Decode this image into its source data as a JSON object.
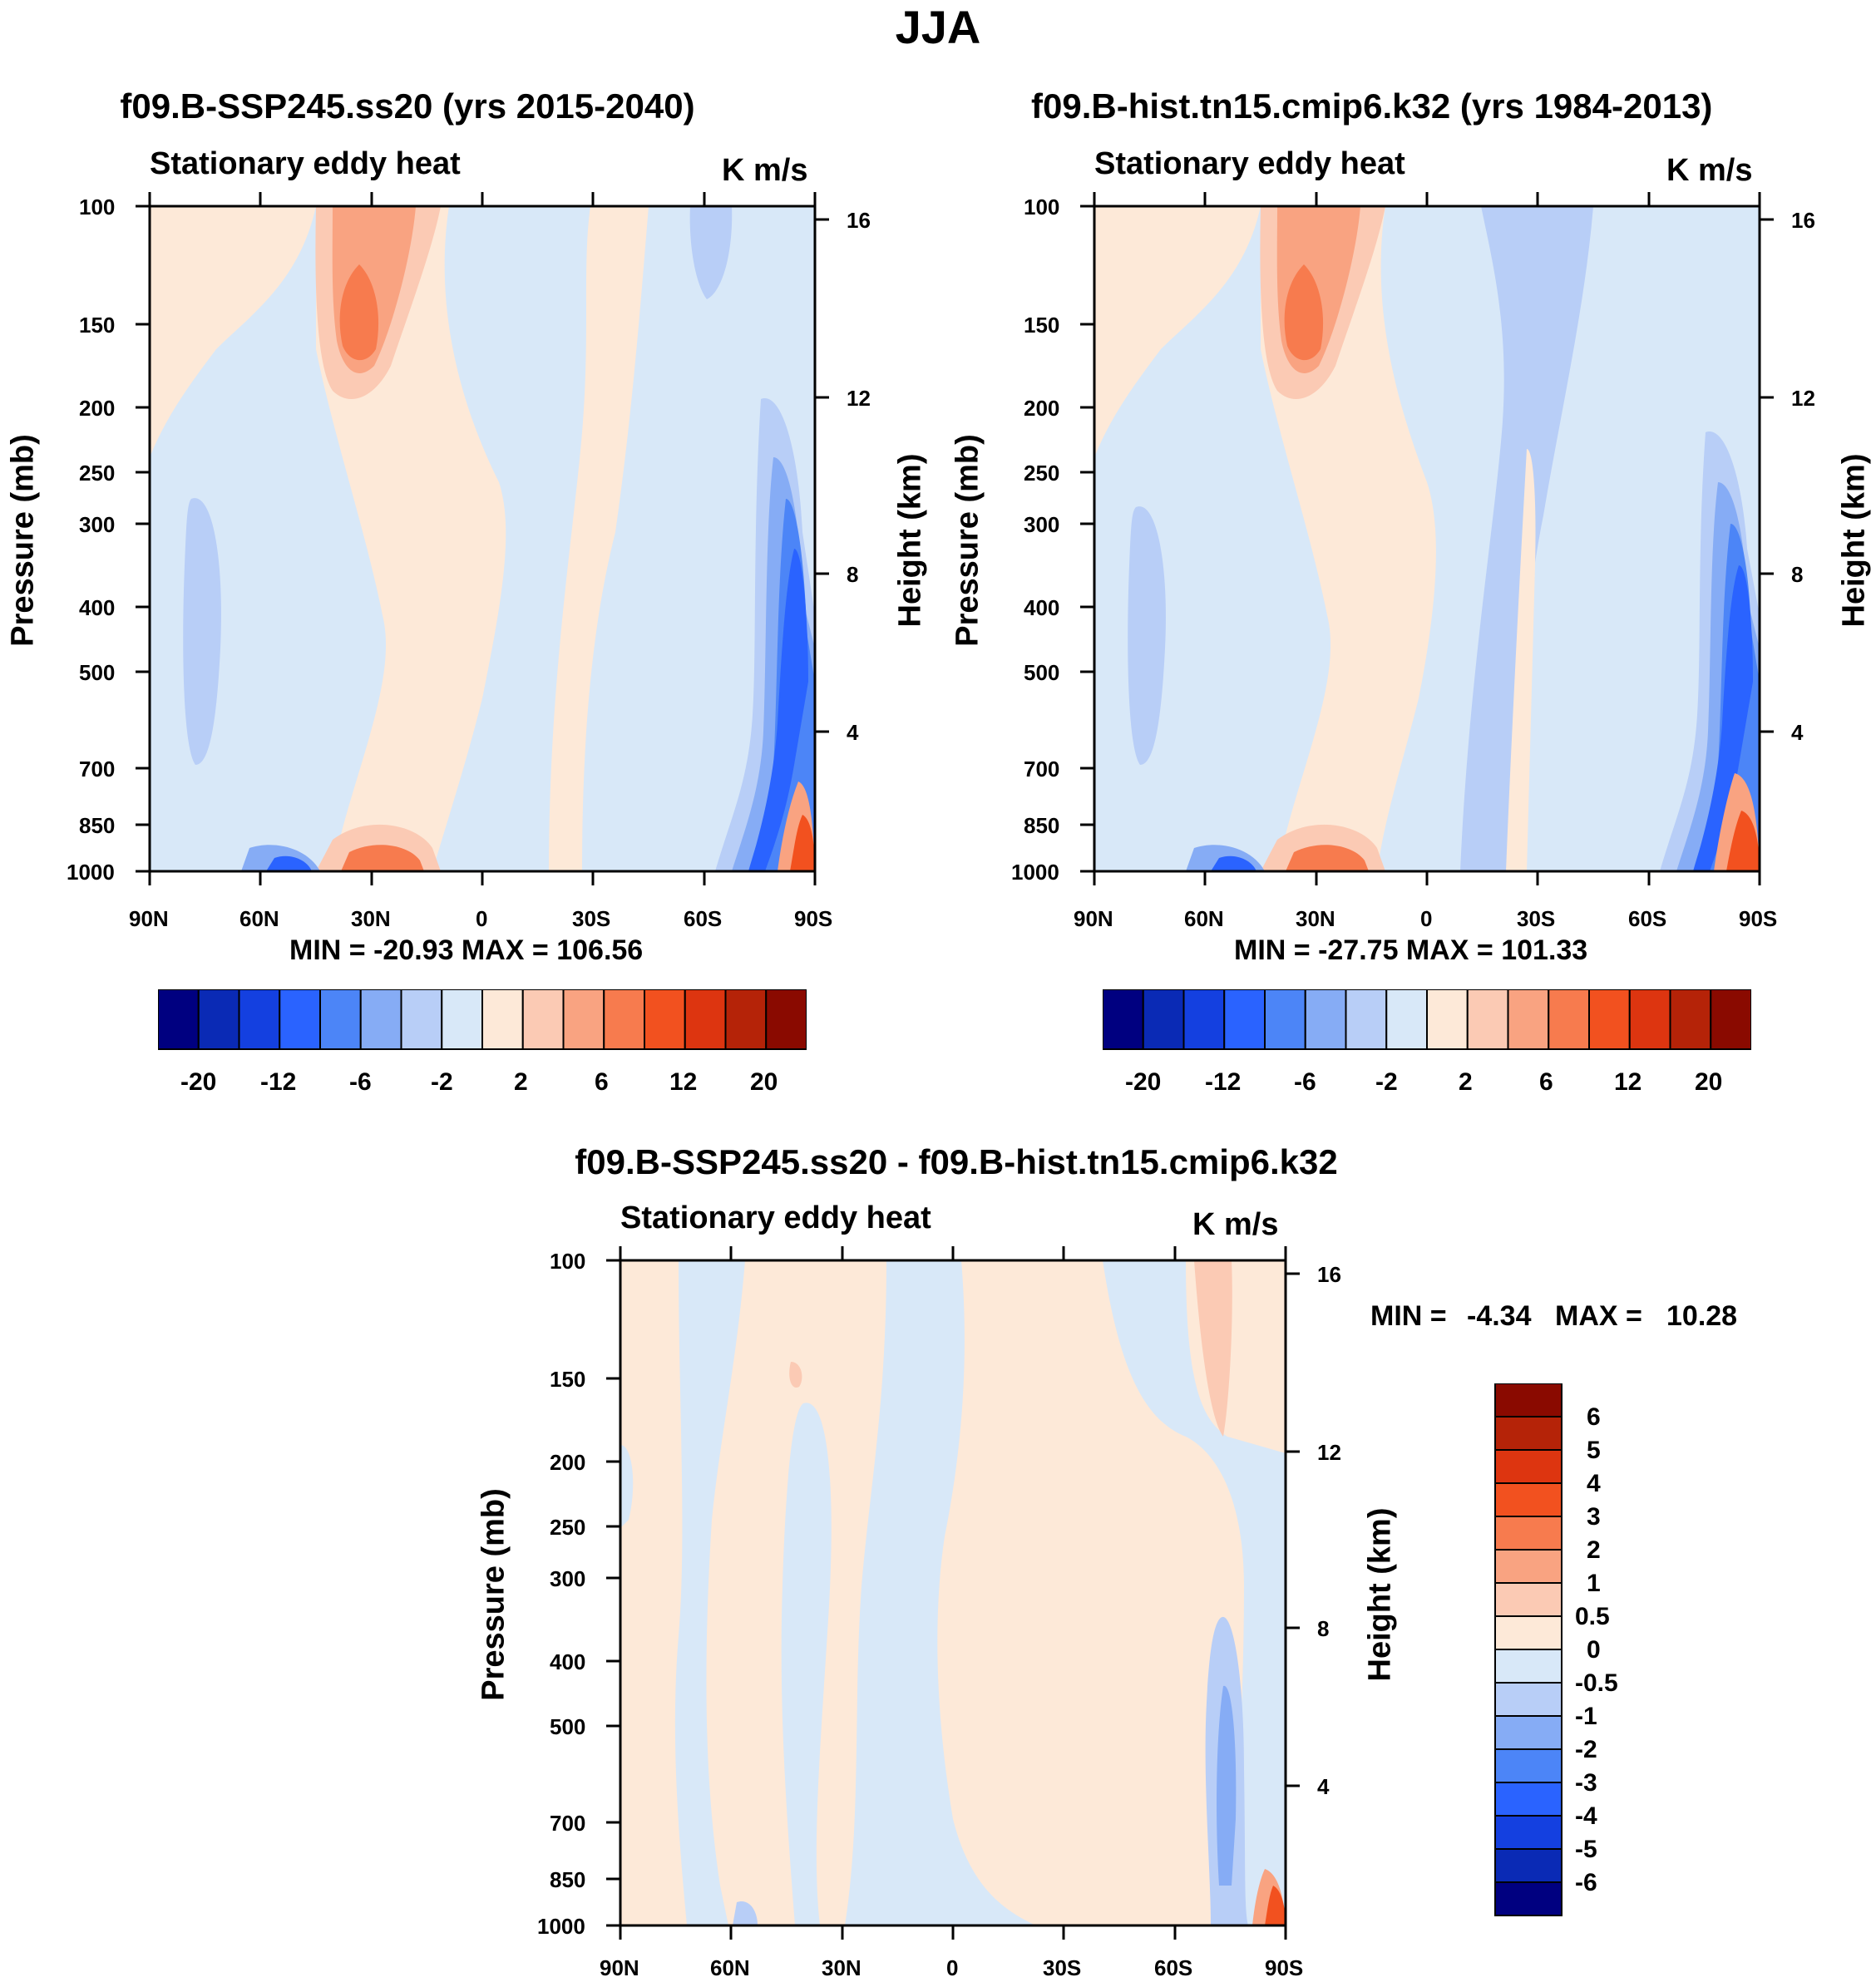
{
  "figure_title": "JJA",
  "colors": {
    "cbar_full": [
      "#000080",
      "#0a2ab5",
      "#1440e0",
      "#2a63ff",
      "#4c85f7",
      "#86acf5",
      "#b8cef7",
      "#d8e8f8",
      "#fde9d8",
      "#fbcab4",
      "#f9a381",
      "#f77b4e",
      "#f2511f",
      "#dd3510",
      "#b52308",
      "#8a0a00"
    ],
    "cbar_diff": [
      "#000080",
      "#0a2ab5",
      "#1440e0",
      "#2a63ff",
      "#4c85f7",
      "#86acf5",
      "#b8cef7",
      "#d8e8f8",
      "#fde9d8",
      "#fbcab4",
      "#f9a381",
      "#f77b4e",
      "#f2511f",
      "#dd3510",
      "#b52308",
      "#8a0a00"
    ]
  },
  "chart_data": [
    {
      "type": "contour",
      "title": "f09.B-SSP245.ss20 (yrs 2015-2040)",
      "left_string": "Stationary eddy heat",
      "right_string": "K m/s",
      "ylabel": "Pressure (mb)",
      "ylabel_right": "Height (km)",
      "x_ticks": [
        "90N",
        "60N",
        "30N",
        "0",
        "30S",
        "60S",
        "90S"
      ],
      "y_ticks": [
        "100",
        "150",
        "200",
        "250",
        "300",
        "400",
        "500",
        "700",
        "850",
        "1000"
      ],
      "y_right_ticks": [
        "16",
        "12",
        "8",
        "4"
      ],
      "min_max": "MIN = -20.93  MAX = 106.56",
      "colorbar_labels": [
        "-20",
        "-12",
        "-6",
        "-2",
        "2",
        "6",
        "12",
        "20"
      ],
      "min": -20.93,
      "max": 106.56
    },
    {
      "type": "contour",
      "title": "f09.B-hist.tn15.cmip6.k32 (yrs 1984-2013)",
      "left_string": "Stationary eddy heat",
      "right_string": "K m/s",
      "ylabel": "Pressure (mb)",
      "ylabel_right": "Height (km)",
      "x_ticks": [
        "90N",
        "60N",
        "30N",
        "0",
        "30S",
        "60S",
        "90S"
      ],
      "y_ticks": [
        "100",
        "150",
        "200",
        "250",
        "300",
        "400",
        "500",
        "700",
        "850",
        "1000"
      ],
      "y_right_ticks": [
        "16",
        "12",
        "8",
        "4"
      ],
      "min_max": "MIN = -27.75  MAX = 101.33",
      "colorbar_labels": [
        "-20",
        "-12",
        "-6",
        "-2",
        "2",
        "6",
        "12",
        "20"
      ],
      "min": -27.75,
      "max": 101.33
    },
    {
      "type": "contour",
      "title": "f09.B-SSP245.ss20 - f09.B-hist.tn15.cmip6.k32",
      "left_string": "Stationary eddy heat",
      "right_string": "K m/s",
      "ylabel": "Pressure (mb)",
      "ylabel_right": "Height (km)",
      "x_ticks": [
        "90N",
        "60N",
        "30N",
        "0",
        "30S",
        "60S",
        "90S"
      ],
      "y_ticks": [
        "100",
        "150",
        "200",
        "250",
        "300",
        "400",
        "500",
        "700",
        "850",
        "1000"
      ],
      "y_right_ticks": [
        "16",
        "12",
        "8",
        "4"
      ],
      "min_label": "MIN =",
      "min_value": "-4.34",
      "max_label": "MAX =",
      "max_value": "10.28",
      "colorbar_labels": [
        "6",
        "5",
        "4",
        "3",
        "2",
        "1",
        "0.5",
        "0",
        "-0.5",
        "-1",
        "-2",
        "-3",
        "-4",
        "-5",
        "-6"
      ],
      "min": -4.34,
      "max": 10.28
    }
  ]
}
